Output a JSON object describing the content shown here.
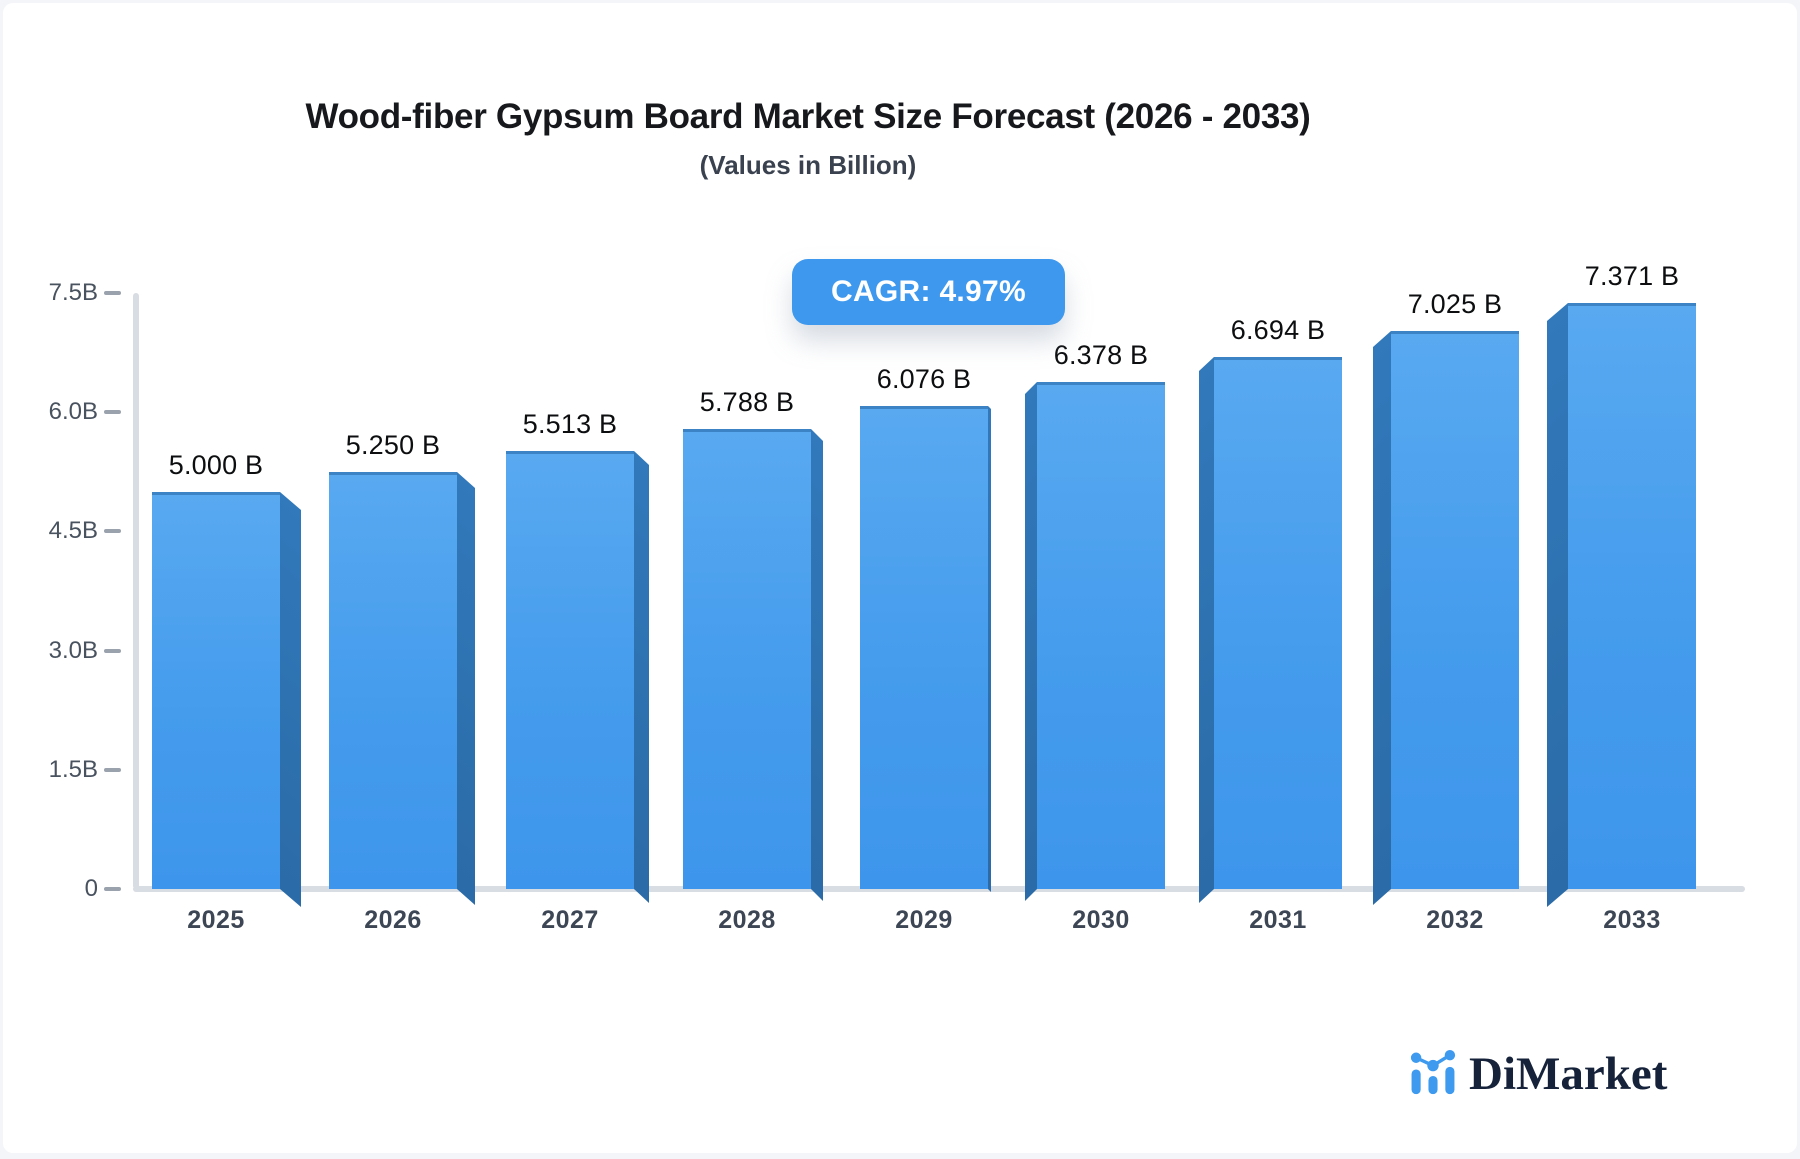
{
  "header": {
    "title": "Wood-fiber Gypsum Board Market Size Forecast (2026 - 2033)",
    "subtitle": "(Values in Billion)"
  },
  "badge": {
    "label": "CAGR: 4.97%"
  },
  "chart_data": {
    "type": "bar",
    "title": "Wood-fiber Gypsum Board Market Size Forecast (2026 - 2033)",
    "subtitle": "(Values in Billion)",
    "annotation": "CAGR: 4.97%",
    "categories": [
      "2025",
      "2026",
      "2027",
      "2028",
      "2029",
      "2030",
      "2031",
      "2032",
      "2033"
    ],
    "values": [
      5.0,
      5.25,
      5.513,
      5.788,
      6.076,
      6.378,
      6.694,
      7.025,
      7.371
    ],
    "value_labels": [
      "5.000 B",
      "5.250 B",
      "5.513 B",
      "5.788 B",
      "6.076 B",
      "6.378 B",
      "6.694 B",
      "7.025 B",
      "7.371 B"
    ],
    "yticks": {
      "labels": [
        "0",
        "1.5B",
        "3.0B",
        "4.5B",
        "6.0B",
        "7.5B"
      ],
      "values": [
        0,
        1.5,
        3.0,
        4.5,
        6.0,
        7.5
      ]
    },
    "ylim": [
      0,
      7.5
    ],
    "grid": false,
    "legend": null,
    "unit": "Billion",
    "colors": {
      "bar_front_top": "#58a9f0",
      "bar_front_mid": "#459ced",
      "bar_front_bottom": "#3e96ec",
      "bar_side_top": "#3179bb",
      "bar_side_bottom": "#2b6ba7",
      "bar_top_edge": "#3c83c6",
      "axis": "#d8dce3",
      "tick_dash": "#9aa2ae",
      "badge_bg": "#3d98ee",
      "badge_text": "#ffffff",
      "title_text": "#16181c",
      "subtitle_text": "#3a4250",
      "value_text": "#0d0e10",
      "tick_text": "#49525f",
      "year_text": "#3d4654",
      "brand_text": "#15223a",
      "brand_icon": "#3d9aef"
    }
  },
  "footer": {
    "brand": "DiMarket"
  }
}
